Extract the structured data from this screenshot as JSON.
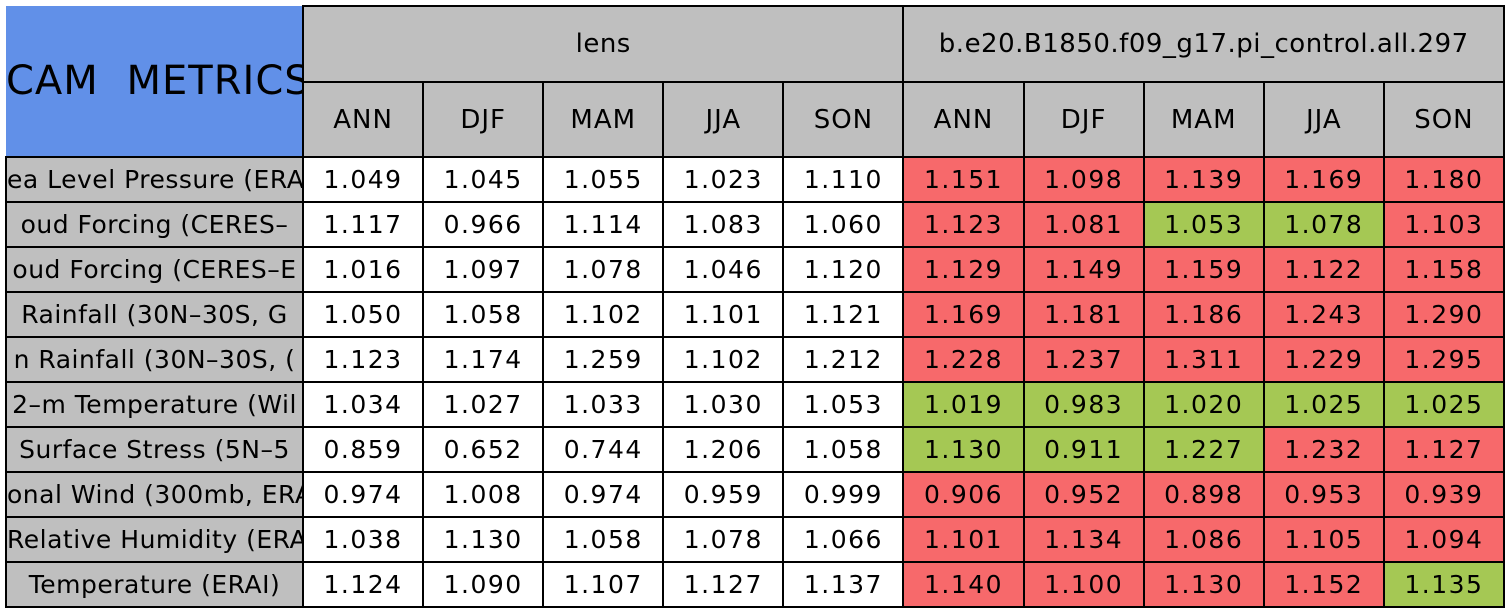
{
  "colors": {
    "title_bg": "#6190e8",
    "header_bg": "#bfbfbf",
    "flag_red": "#f7696b",
    "flag_green": "#a5c854",
    "cell_bg": "#ffffff",
    "border": "#000000"
  },
  "chart_data": {
    "type": "table",
    "title": "CAM METRICS",
    "column_groups": [
      "lens",
      "b.e20.B1850.f09_g17.pi_control.all.297"
    ],
    "seasons": [
      "ANN",
      "DJF",
      "MAM",
      "JJA",
      "SON"
    ],
    "rows": [
      {
        "label": "ea Level Pressure (ERA",
        "lens": [
          "1.049",
          "1.045",
          "1.055",
          "1.023",
          "1.110"
        ],
        "control": [
          "1.151",
          "1.098",
          "1.139",
          "1.169",
          "1.180"
        ],
        "control_colors": [
          "red",
          "red",
          "red",
          "red",
          "red"
        ]
      },
      {
        "label": "oud Forcing (CERES–",
        "lens": [
          "1.117",
          "0.966",
          "1.114",
          "1.083",
          "1.060"
        ],
        "control": [
          "1.123",
          "1.081",
          "1.053",
          "1.078",
          "1.103"
        ],
        "control_colors": [
          "red",
          "red",
          "green",
          "green",
          "red"
        ]
      },
      {
        "label": "oud Forcing (CERES–E",
        "lens": [
          "1.016",
          "1.097",
          "1.078",
          "1.046",
          "1.120"
        ],
        "control": [
          "1.129",
          "1.149",
          "1.159",
          "1.122",
          "1.158"
        ],
        "control_colors": [
          "red",
          "red",
          "red",
          "red",
          "red"
        ]
      },
      {
        "label": "Rainfall (30N–30S, G",
        "lens": [
          "1.050",
          "1.058",
          "1.102",
          "1.101",
          "1.121"
        ],
        "control": [
          "1.169",
          "1.181",
          "1.186",
          "1.243",
          "1.290"
        ],
        "control_colors": [
          "red",
          "red",
          "red",
          "red",
          "red"
        ]
      },
      {
        "label": "n Rainfall (30N–30S, (",
        "lens": [
          "1.123",
          "1.174",
          "1.259",
          "1.102",
          "1.212"
        ],
        "control": [
          "1.228",
          "1.237",
          "1.311",
          "1.229",
          "1.295"
        ],
        "control_colors": [
          "red",
          "red",
          "red",
          "red",
          "red"
        ]
      },
      {
        "label": "2–m Temperature (Wil",
        "lens": [
          "1.034",
          "1.027",
          "1.033",
          "1.030",
          "1.053"
        ],
        "control": [
          "1.019",
          "0.983",
          "1.020",
          "1.025",
          "1.025"
        ],
        "control_colors": [
          "green",
          "green",
          "green",
          "green",
          "green"
        ]
      },
      {
        "label": "Surface Stress (5N–5",
        "lens": [
          "0.859",
          "0.652",
          "0.744",
          "1.206",
          "1.058"
        ],
        "control": [
          "1.130",
          "0.911",
          "1.227",
          "1.232",
          "1.127"
        ],
        "control_colors": [
          "green",
          "green",
          "green",
          "red",
          "red"
        ]
      },
      {
        "label": "onal Wind (300mb, ERA",
        "lens": [
          "0.974",
          "1.008",
          "0.974",
          "0.959",
          "0.999"
        ],
        "control": [
          "0.906",
          "0.952",
          "0.898",
          "0.953",
          "0.939"
        ],
        "control_colors": [
          "red",
          "red",
          "red",
          "red",
          "red"
        ]
      },
      {
        "label": "Relative Humidity (ERAI",
        "lens": [
          "1.038",
          "1.130",
          "1.058",
          "1.078",
          "1.066"
        ],
        "control": [
          "1.101",
          "1.134",
          "1.086",
          "1.105",
          "1.094"
        ],
        "control_colors": [
          "red",
          "red",
          "red",
          "red",
          "red"
        ]
      },
      {
        "label": "Temperature (ERAI)",
        "lens": [
          "1.124",
          "1.090",
          "1.107",
          "1.127",
          "1.137"
        ],
        "control": [
          "1.140",
          "1.100",
          "1.130",
          "1.152",
          "1.135"
        ],
        "control_colors": [
          "red",
          "red",
          "red",
          "red",
          "green"
        ]
      }
    ]
  }
}
